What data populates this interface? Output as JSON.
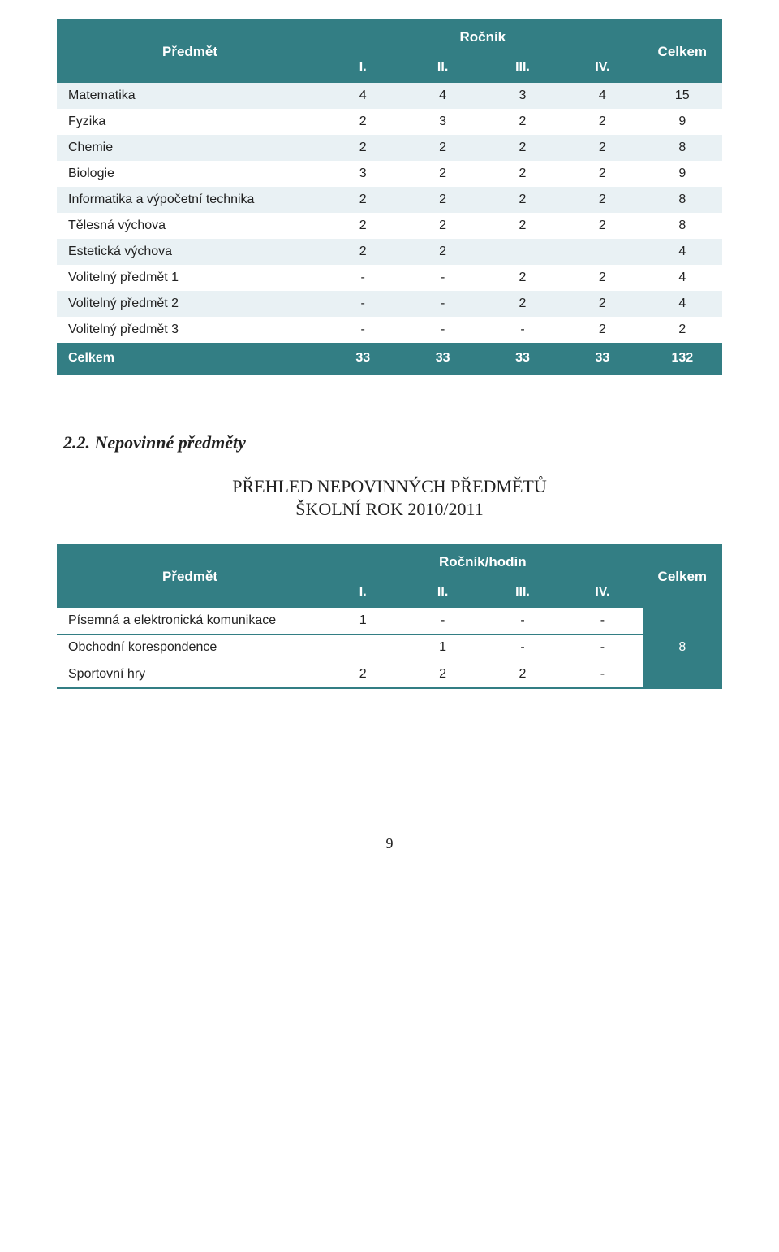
{
  "colors": {
    "teal": "#337e84",
    "row_alt": "#e9f1f4",
    "row_base": "#ffffff",
    "text": "#222222",
    "header_text": "#ffffff"
  },
  "table1": {
    "header": {
      "subject": "Předmět",
      "group": "Ročník",
      "total": "Celkem",
      "cols": [
        "I.",
        "II.",
        "III.",
        "IV."
      ]
    },
    "rows": [
      {
        "name": "Matematika",
        "v": [
          "4",
          "4",
          "3",
          "4"
        ],
        "t": "15"
      },
      {
        "name": "Fyzika",
        "v": [
          "2",
          "3",
          "2",
          "2"
        ],
        "t": "9"
      },
      {
        "name": "Chemie",
        "v": [
          "2",
          "2",
          "2",
          "2"
        ],
        "t": "8"
      },
      {
        "name": "Biologie",
        "v": [
          "3",
          "2",
          "2",
          "2"
        ],
        "t": "9"
      },
      {
        "name": "Informatika a výpočetní technika",
        "v": [
          "2",
          "2",
          "2",
          "2"
        ],
        "t": "8"
      },
      {
        "name": "Tělesná výchova",
        "v": [
          "2",
          "2",
          "2",
          "2"
        ],
        "t": "8"
      },
      {
        "name": "Estetická výchova",
        "v": [
          "2",
          "2",
          "",
          ""
        ],
        "t": "4"
      },
      {
        "name": "Volitelný předmět 1",
        "v": [
          "-",
          "-",
          "2",
          "2"
        ],
        "t": "4"
      },
      {
        "name": "Volitelný předmět 2",
        "v": [
          "-",
          "-",
          "2",
          "2"
        ],
        "t": "4"
      },
      {
        "name": "Volitelný předmět 3",
        "v": [
          "-",
          "-",
          "-",
          "2"
        ],
        "t": "2"
      }
    ],
    "total": {
      "label": "Celkem",
      "v": [
        "33",
        "33",
        "33",
        "33"
      ],
      "t": "132"
    }
  },
  "section": {
    "num": "2.2. Nepovinné předměty",
    "title": "PŘEHLED NEPOVINNÝCH PŘEDMĚTŮ",
    "sub": "ŠKOLNÍ ROK 2010/2011"
  },
  "table2": {
    "header": {
      "subject": "Předmět",
      "group": "Ročník/hodin",
      "total": "Celkem",
      "cols": [
        "I.",
        "II.",
        "III.",
        "IV."
      ]
    },
    "rows": [
      {
        "name": "Písemná a elektronická komunikace",
        "v": [
          "1",
          "-",
          "-",
          "-"
        ]
      },
      {
        "name": "Obchodní korespondence",
        "v": [
          "",
          "1",
          "-",
          "-"
        ]
      },
      {
        "name": "Sportovní hry",
        "v": [
          "2",
          "2",
          "2",
          "-"
        ]
      }
    ],
    "total": "8"
  },
  "page_number": "9"
}
